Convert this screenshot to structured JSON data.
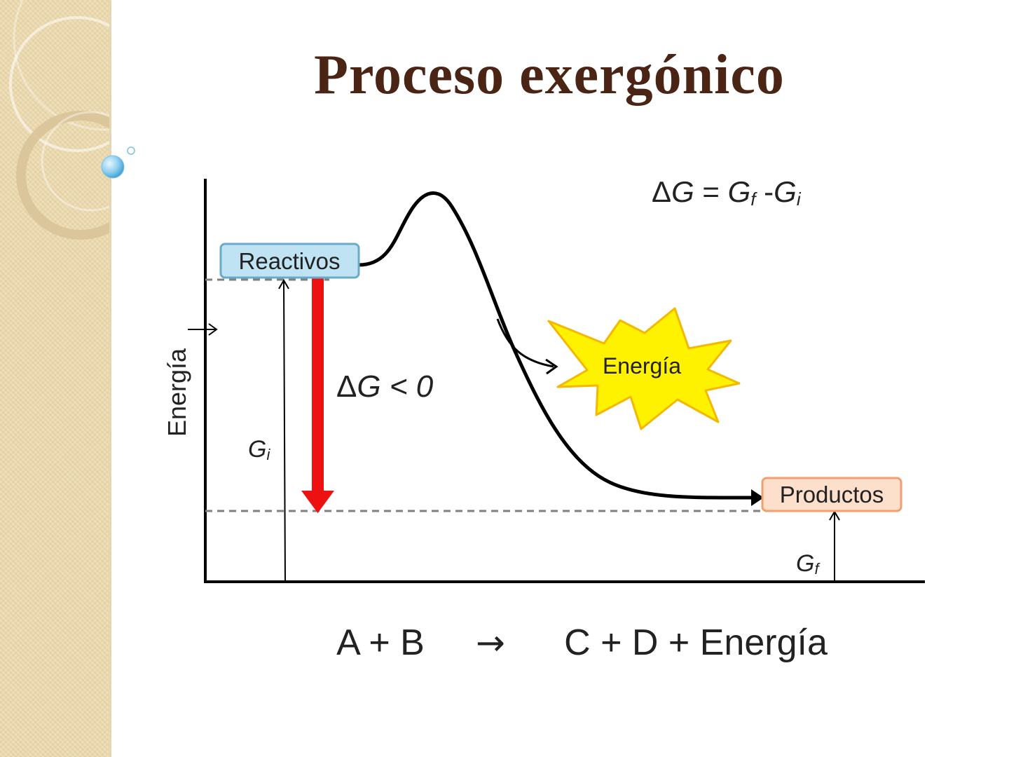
{
  "slide": {
    "title": "Proceso exergónico"
  },
  "diagram": {
    "y_axis_label": "Energía",
    "reactants_label": "Reactivos",
    "products_label": "Productos",
    "energy_burst_label": "Energía",
    "delta_g_formula": {
      "delta": "Δ",
      "g": "G",
      "eq": " = ",
      "gf": "G",
      "f": "f",
      "minus": " -",
      "gi": "G",
      "i": "i"
    },
    "delta_g_condition": {
      "delta": "Δ",
      "g": "G",
      "rest": " < 0"
    },
    "gi_label": {
      "g": "G",
      "sub": "i"
    },
    "gf_label": {
      "g": "G",
      "sub": "f"
    },
    "reaction_equation": {
      "left": "A + B",
      "arrow": "→",
      "right": "C + D + Energía"
    },
    "colors": {
      "title": "#4a2414",
      "reactants_fill": "#bfe3f3",
      "reactants_border": "#6aaac8",
      "products_fill": "#fde0cc",
      "products_border": "#f0a070",
      "delta_arrow": "#ee1111",
      "burst_fill": "#fff200",
      "burst_border": "#f5b800",
      "dashed_line": "#808080"
    }
  }
}
